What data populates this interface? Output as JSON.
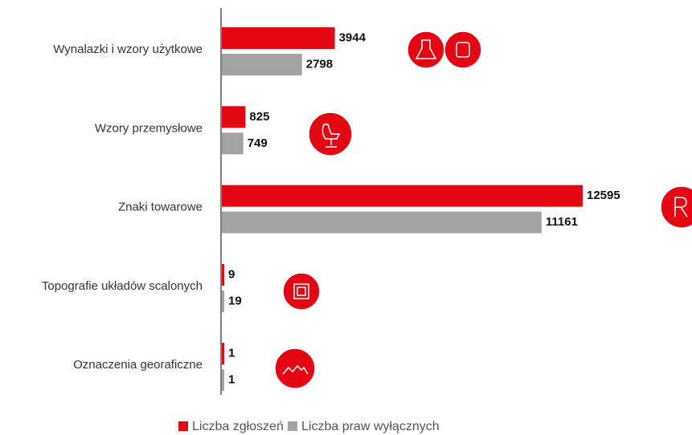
{
  "chart_data": {
    "type": "hbar",
    "categories": [
      "Wynalazki i wzory użytkowe",
      "Wzory przemysłowe",
      "Znaki towarowe",
      "Topografie układów scalonych",
      "Oznaczenia georaficzne"
    ],
    "series": [
      {
        "name": "Liczba zgłoszeń",
        "color": "#e30613",
        "values": [
          3944,
          825,
          12595,
          9,
          1
        ]
      },
      {
        "name": "Liczba praw wyłącznych",
        "color": "#a3a3a3",
        "values": [
          2798,
          749,
          11161,
          19,
          1
        ]
      }
    ],
    "legend": "bottom"
  }
}
